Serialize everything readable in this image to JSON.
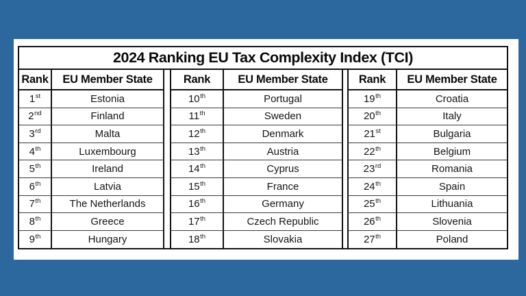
{
  "background_color": "#2C689E",
  "card_color": "#FFFFFF",
  "border_color": "#111111",
  "table": {
    "title": "2024 Ranking EU Tax Complexity Index (TCI)",
    "columns": [
      "Rank",
      "EU Member State"
    ],
    "groups": [
      {
        "rows": [
          {
            "num": "1",
            "suffix": "st",
            "state": "Estonia"
          },
          {
            "num": "2",
            "suffix": "nd",
            "state": "Finland"
          },
          {
            "num": "3",
            "suffix": "rd",
            "state": "Malta"
          },
          {
            "num": "4",
            "suffix": "th",
            "state": "Luxembourg"
          },
          {
            "num": "5",
            "suffix": "th",
            "state": "Ireland"
          },
          {
            "num": "6",
            "suffix": "th",
            "state": "Latvia"
          },
          {
            "num": "7",
            "suffix": "th",
            "state": "The Netherlands"
          },
          {
            "num": "8",
            "suffix": "th",
            "state": "Greece"
          },
          {
            "num": "9",
            "suffix": "th",
            "state": "Hungary"
          }
        ]
      },
      {
        "rows": [
          {
            "num": "10",
            "suffix": "th",
            "state": "Portugal"
          },
          {
            "num": "11",
            "suffix": "th",
            "state": "Sweden"
          },
          {
            "num": "12",
            "suffix": "th",
            "state": "Denmark"
          },
          {
            "num": "13",
            "suffix": "th",
            "state": "Austria"
          },
          {
            "num": "14",
            "suffix": "th",
            "state": "Cyprus"
          },
          {
            "num": "15",
            "suffix": "th",
            "state": "France"
          },
          {
            "num": "16",
            "suffix": "th",
            "state": "Germany"
          },
          {
            "num": "17",
            "suffix": "th",
            "state": "Czech Republic"
          },
          {
            "num": "18",
            "suffix": "th",
            "state": "Slovakia"
          }
        ]
      },
      {
        "rows": [
          {
            "num": "19",
            "suffix": "th",
            "state": "Croatia"
          },
          {
            "num": "20",
            "suffix": "th",
            "state": "Italy"
          },
          {
            "num": "21",
            "suffix": "st",
            "state": "Bulgaria"
          },
          {
            "num": "22",
            "suffix": "th",
            "state": "Belgium"
          },
          {
            "num": "23",
            "suffix": "rd",
            "state": "Romania"
          },
          {
            "num": "24",
            "suffix": "th",
            "state": "Spain"
          },
          {
            "num": "25",
            "suffix": "th",
            "state": "Lithuania"
          },
          {
            "num": "26",
            "suffix": "th",
            "state": "Slovenia"
          },
          {
            "num": "27",
            "suffix": "th",
            "state": "Poland"
          }
        ]
      }
    ]
  },
  "chart_data": {
    "type": "table",
    "title": "2024 Ranking EU Tax Complexity Index (TCI)",
    "columns": [
      "Rank",
      "EU Member State",
      "Rank",
      "EU Member State",
      "Rank",
      "EU Member State"
    ],
    "rows": [
      [
        "1st",
        "Estonia",
        "10th",
        "Portugal",
        "19th",
        "Croatia"
      ],
      [
        "2nd",
        "Finland",
        "11th",
        "Sweden",
        "20th",
        "Italy"
      ],
      [
        "3rd",
        "Malta",
        "12th",
        "Denmark",
        "21st",
        "Bulgaria"
      ],
      [
        "4th",
        "Luxembourg",
        "13th",
        "Austria",
        "22th",
        "Belgium"
      ],
      [
        "5th",
        "Ireland",
        "14th",
        "Cyprus",
        "23rd",
        "Romania"
      ],
      [
        "6th",
        "Latvia",
        "15th",
        "France",
        "24th",
        "Spain"
      ],
      [
        "7th",
        "The Netherlands",
        "16th",
        "Germany",
        "25th",
        "Lithuania"
      ],
      [
        "8th",
        "Greece",
        "17th",
        "Czech Republic",
        "26th",
        "Slovenia"
      ],
      [
        "9th",
        "Hungary",
        "18th",
        "Slovakia",
        "27th",
        "Poland"
      ]
    ]
  }
}
